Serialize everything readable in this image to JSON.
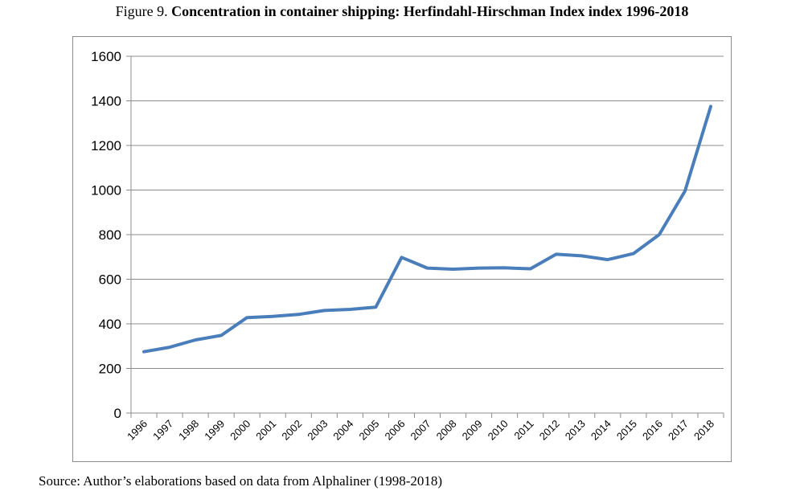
{
  "caption": {
    "prefix": "Figure 9.",
    "title": "Concentration in container shipping: Herfindahl-Hirschman Index index 1996-2018"
  },
  "source_note": {
    "label": "Source:",
    "text": "Author’s elaborations based on data from Alphaliner (1998-2018)"
  },
  "colors": {
    "line": "#4a7ebb",
    "grid": "#8c8c8c",
    "axis": "#8c8c8c"
  },
  "chart_data": {
    "type": "line",
    "title": "",
    "xlabel": "",
    "ylabel": "",
    "x": [
      "1996",
      "1997",
      "1998",
      "1999",
      "2000",
      "2001",
      "2002",
      "2003",
      "2004",
      "2005",
      "2006",
      "2007",
      "2008",
      "2009",
      "2010",
      "2011",
      "2012",
      "2013",
      "2014",
      "2015",
      "2016",
      "2017",
      "2018"
    ],
    "series": [
      {
        "name": "",
        "values": [
          275,
          295,
          328,
          348,
          428,
          433,
          442,
          460,
          465,
          475,
          698,
          650,
          645,
          650,
          651,
          647,
          712,
          705,
          688,
          715,
          800,
          995,
          1375
        ]
      }
    ],
    "ylim": [
      0,
      1600
    ],
    "yticks": [
      0,
      200,
      400,
      600,
      800,
      1000,
      1200,
      1400,
      1600
    ],
    "grid": true,
    "legend": "none"
  }
}
